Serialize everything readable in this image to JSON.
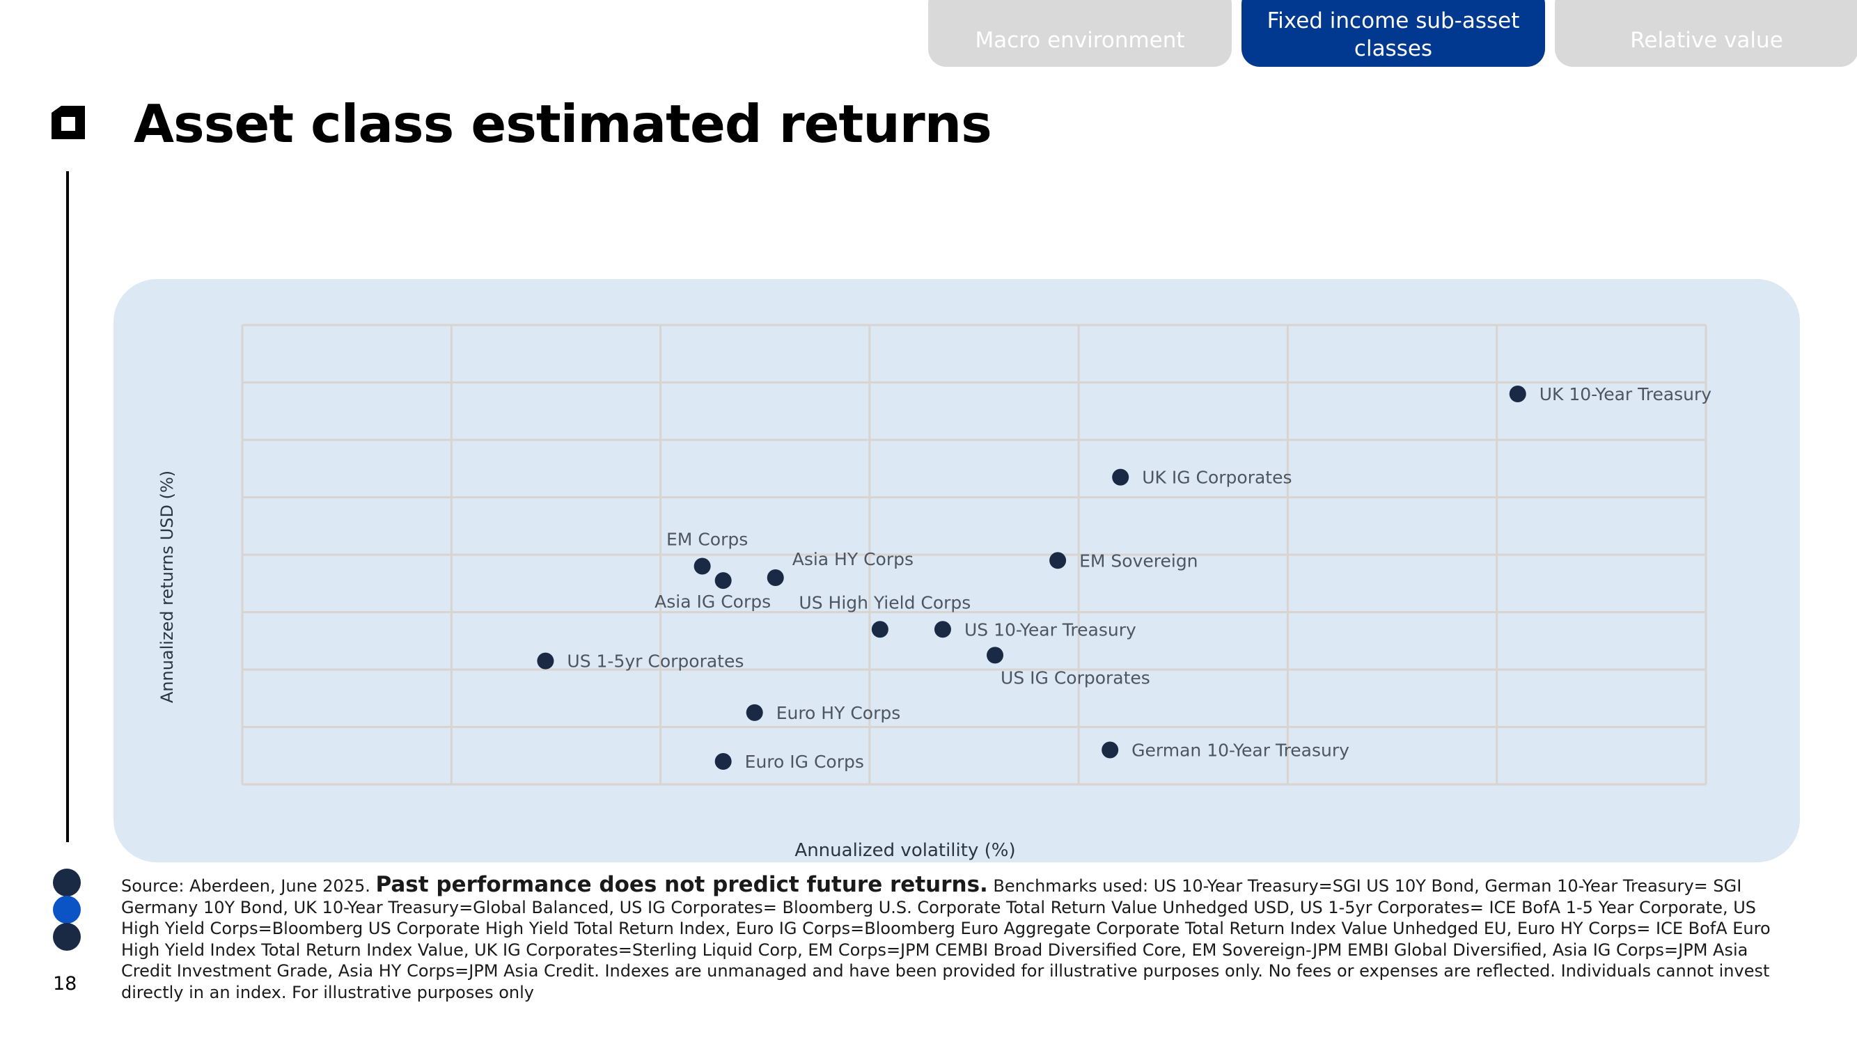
{
  "tabs": [
    {
      "label": "Macro environment",
      "active": false
    },
    {
      "label": "Fixed income sub-asset classes",
      "active": true
    },
    {
      "label": "Relative value",
      "active": false
    }
  ],
  "page_title": "Asset class estimated returns",
  "page_number": "18",
  "colors": {
    "accent": "#00398f",
    "tab_inactive": "#d9d9d9",
    "panel_bg": "#dce8f4",
    "marker": "#1a2a45",
    "grid": "#d9d4cf"
  },
  "chart_data": {
    "type": "scatter",
    "title": "",
    "xlabel": "Annualized volatility (%)",
    "ylabel": "Annualized returns USD (%)",
    "xlim": [
      0,
      7
    ],
    "ylim": [
      0,
      8
    ],
    "grid": true,
    "tick_labels_shown": false,
    "points": [
      {
        "label": "UK 10-Year Treasury",
        "x": 6.1,
        "y": 6.8,
        "label_pos": "right"
      },
      {
        "label": "UK IG Corporates",
        "x": 4.2,
        "y": 5.35,
        "label_pos": "right"
      },
      {
        "label": "EM Sovereign",
        "x": 3.9,
        "y": 3.9,
        "label_pos": "right"
      },
      {
        "label": "EM Corps",
        "x": 2.2,
        "y": 3.8,
        "label_pos": "above"
      },
      {
        "label": "Asia IG Corps",
        "x": 2.3,
        "y": 3.55,
        "label_pos": "below"
      },
      {
        "label": "Asia HY Corps",
        "x": 2.55,
        "y": 3.6,
        "label_pos": "above-right"
      },
      {
        "label": "US High Yield Corps",
        "x": 3.05,
        "y": 2.7,
        "label_pos": "above"
      },
      {
        "label": "US 10-Year Treasury",
        "x": 3.35,
        "y": 2.7,
        "label_pos": "right"
      },
      {
        "label": "US IG Corporates",
        "x": 3.6,
        "y": 2.25,
        "label_pos": "below-right"
      },
      {
        "label": "US 1-5yr Corporates",
        "x": 1.45,
        "y": 2.15,
        "label_pos": "right"
      },
      {
        "label": "Euro HY Corps",
        "x": 2.45,
        "y": 1.25,
        "label_pos": "right"
      },
      {
        "label": "Euro IG Corps",
        "x": 2.3,
        "y": 0.4,
        "label_pos": "right"
      },
      {
        "label": "German 10-Year Treasury",
        "x": 4.15,
        "y": 0.6,
        "label_pos": "right"
      }
    ]
  },
  "source": {
    "prefix": "Source: Aberdeen, June 2025. ",
    "emphasis": "Past performance does not predict future returns.",
    "body": " Benchmarks used: US 10-Year Treasury=SGI US 10Y Bond, German 10-Year Treasury= SGI Germany 10Y Bond, UK 10-Year Treasury=Global Balanced, US IG Corporates= Bloomberg U.S. Corporate Total Return Value Unhedged USD, US 1-5yr Corporates= ICE BofA 1-5 Year Corporate, US High Yield Corps=Bloomberg US Corporate High Yield Total Return Index, Euro IG Corps=Bloomberg Euro Aggregate Corporate Total Return Index Value Unhedged EU, Euro HY Corps= ICE BofA Euro High Yield Index Total Return Index Value, UK IG Corporates=Sterling Liquid Corp, EM Corps=JPM CEMBI Broad Diversified Core, EM Sovereign-JPM EMBI Global Diversified, Asia IG Corps=JPM  Asia Credit Investment Grade, Asia HY Corps=JPM Asia Credit. Indexes are unmanaged and have been provided for illustrative purposes only. No fees or expenses are reflected. Individuals cannot invest directly in an index. For illustrative purposes only"
  }
}
